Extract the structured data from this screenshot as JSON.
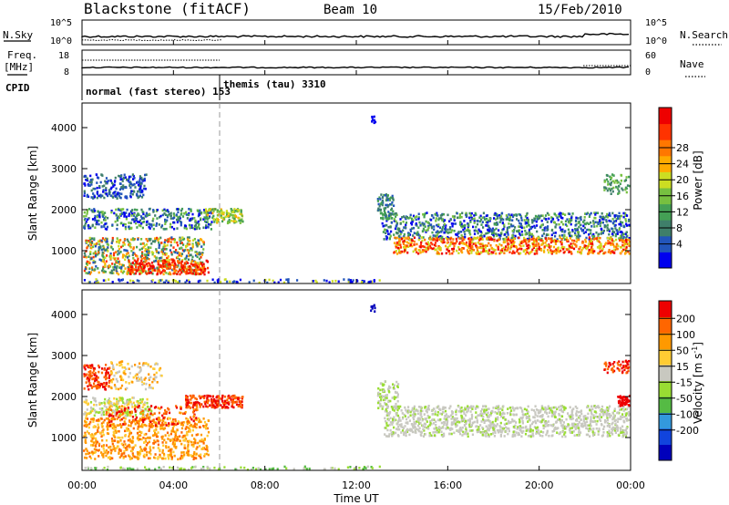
{
  "header": {
    "station": "Blackstone (fitACF)",
    "beam": "Beam 10",
    "date": "15/Feb/2010"
  },
  "top_panels": {
    "nsky_label": "N.Sky",
    "nsky_ticks": [
      "10^5",
      "10^0"
    ],
    "nsearch_label": "N.Search",
    "nsearch_ticks": [
      "10^5",
      "10^0"
    ],
    "freq_label": "Freq.",
    "freq_unit": "[MHz]",
    "freq_ticks": [
      "18",
      "8"
    ],
    "nave_label": "Nave",
    "nave_ticks": [
      "60",
      "0"
    ],
    "cpid_label": "CPID",
    "cpid_entries": [
      {
        "text": "normal (fast stereo) 153"
      },
      {
        "text": "themis (tau) 3310"
      }
    ]
  },
  "chart_data": [
    {
      "type": "heatmap",
      "name_role": "power",
      "ylabel": "Slant Range [km]",
      "yticks": [
        "4000",
        "3000",
        "2000",
        "1000"
      ],
      "ylim": [
        200,
        4600
      ],
      "colorbar": {
        "label": "Power [dB]",
        "ticks": [
          "28",
          "24",
          "20",
          "16",
          "12",
          "8",
          "4"
        ],
        "colors": [
          "#0000ee",
          "#2255bb",
          "#3f7f6a",
          "#44a055",
          "#77c040",
          "#ccdd22",
          "#ffaa00",
          "#ff7700",
          "#ff3300",
          "#ee0000"
        ]
      }
    },
    {
      "type": "heatmap",
      "name_role": "velocity",
      "ylabel": "Slant Range [km]",
      "yticks": [
        "4000",
        "3000",
        "2000",
        "1000"
      ],
      "ylim": [
        200,
        4600
      ],
      "colorbar": {
        "label": "Velocity [m s",
        "label_sup": "-1",
        "label_end": "]",
        "ticks": [
          "200",
          "100",
          "50",
          "15",
          "-15",
          "-50",
          "-100",
          "-200"
        ],
        "colors": [
          "#0000bb",
          "#1144dd",
          "#3399dd",
          "#55bb44",
          "#99dd33",
          "#c8c8c0",
          "#ffcc33",
          "#ff9900",
          "#ff6600",
          "#ee0000"
        ]
      }
    }
  ],
  "x_axis": {
    "ticks": [
      "00:00",
      "04:00",
      "08:00",
      "12:00",
      "16:00",
      "20:00",
      "00:00"
    ],
    "label": "Time UT",
    "hours": [
      0,
      4,
      8,
      12,
      16,
      20,
      24
    ]
  }
}
